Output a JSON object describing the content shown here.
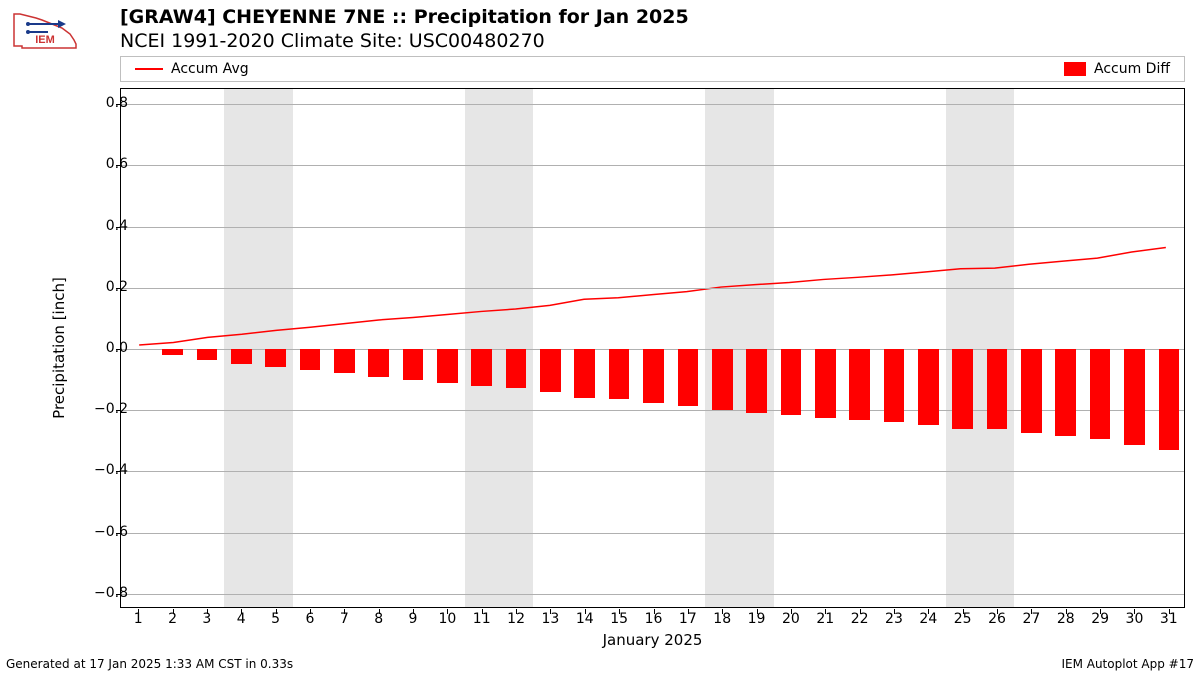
{
  "logo_text": "IEM",
  "title": {
    "line1": "[GRAW4] CHEYENNE 7NE :: Precipitation for Jan 2025",
    "line2": "NCEI 1991-2020 Climate Site: USC00480270"
  },
  "legend": {
    "line_label": "Accum Avg",
    "bar_label": "Accum Diff"
  },
  "chart": {
    "type": "bar+line",
    "background_color": "#ffffff",
    "grid_color": "#b0b0b0",
    "weekend_band_color": "#e6e6e6",
    "line_color": "#ff0000",
    "bar_color": "#ff0000",
    "ylabel": "Precipitation [inch]",
    "xlabel": "January 2025",
    "ylim": [
      -0.85,
      0.85
    ],
    "yticks": [
      -0.8,
      -0.6,
      -0.4,
      -0.2,
      0.0,
      0.2,
      0.4,
      0.6,
      0.8
    ],
    "ytick_labels": [
      "−0.8",
      "−0.6",
      "−0.4",
      "−0.2",
      "0.0",
      "0.2",
      "0.4",
      "0.6",
      "0.8"
    ],
    "xlim": [
      0.5,
      31.5
    ],
    "xticks": [
      1,
      2,
      3,
      4,
      5,
      6,
      7,
      8,
      9,
      10,
      11,
      12,
      13,
      14,
      15,
      16,
      17,
      18,
      19,
      20,
      21,
      22,
      23,
      24,
      25,
      26,
      27,
      28,
      29,
      30,
      31
    ],
    "weekend_bands": [
      [
        3.5,
        5.5
      ],
      [
        10.5,
        12.5
      ],
      [
        17.5,
        19.5
      ],
      [
        24.5,
        26.5
      ]
    ],
    "days": [
      1,
      2,
      3,
      4,
      5,
      6,
      7,
      8,
      9,
      10,
      11,
      12,
      13,
      14,
      15,
      16,
      17,
      18,
      19,
      20,
      21,
      22,
      23,
      24,
      25,
      26,
      27,
      28,
      29,
      30,
      31
    ],
    "accum_avg": [
      0.01,
      0.018,
      0.035,
      0.045,
      0.058,
      0.068,
      0.08,
      0.092,
      0.1,
      0.11,
      0.12,
      0.128,
      0.14,
      0.16,
      0.165,
      0.175,
      0.185,
      0.2,
      0.208,
      0.215,
      0.225,
      0.232,
      0.24,
      0.25,
      0.26,
      0.262,
      0.275,
      0.285,
      0.295,
      0.315,
      0.33
    ],
    "accum_diff": [
      -0.0,
      -0.018,
      -0.035,
      -0.05,
      -0.058,
      -0.068,
      -0.08,
      -0.092,
      -0.1,
      -0.11,
      -0.12,
      -0.128,
      -0.14,
      -0.16,
      -0.165,
      -0.175,
      -0.185,
      -0.2,
      -0.208,
      -0.215,
      -0.225,
      -0.232,
      -0.24,
      -0.25,
      -0.26,
      -0.262,
      -0.275,
      -0.285,
      -0.295,
      -0.315,
      -0.33
    ],
    "bar_width": 0.6,
    "line_width": 1.5,
    "title_fontsize": 19,
    "label_fontsize": 15,
    "tick_fontsize": 14
  },
  "footer": {
    "left": "Generated at 17 Jan 2025 1:33 AM CST in 0.33s",
    "right": "IEM Autoplot App #17"
  }
}
